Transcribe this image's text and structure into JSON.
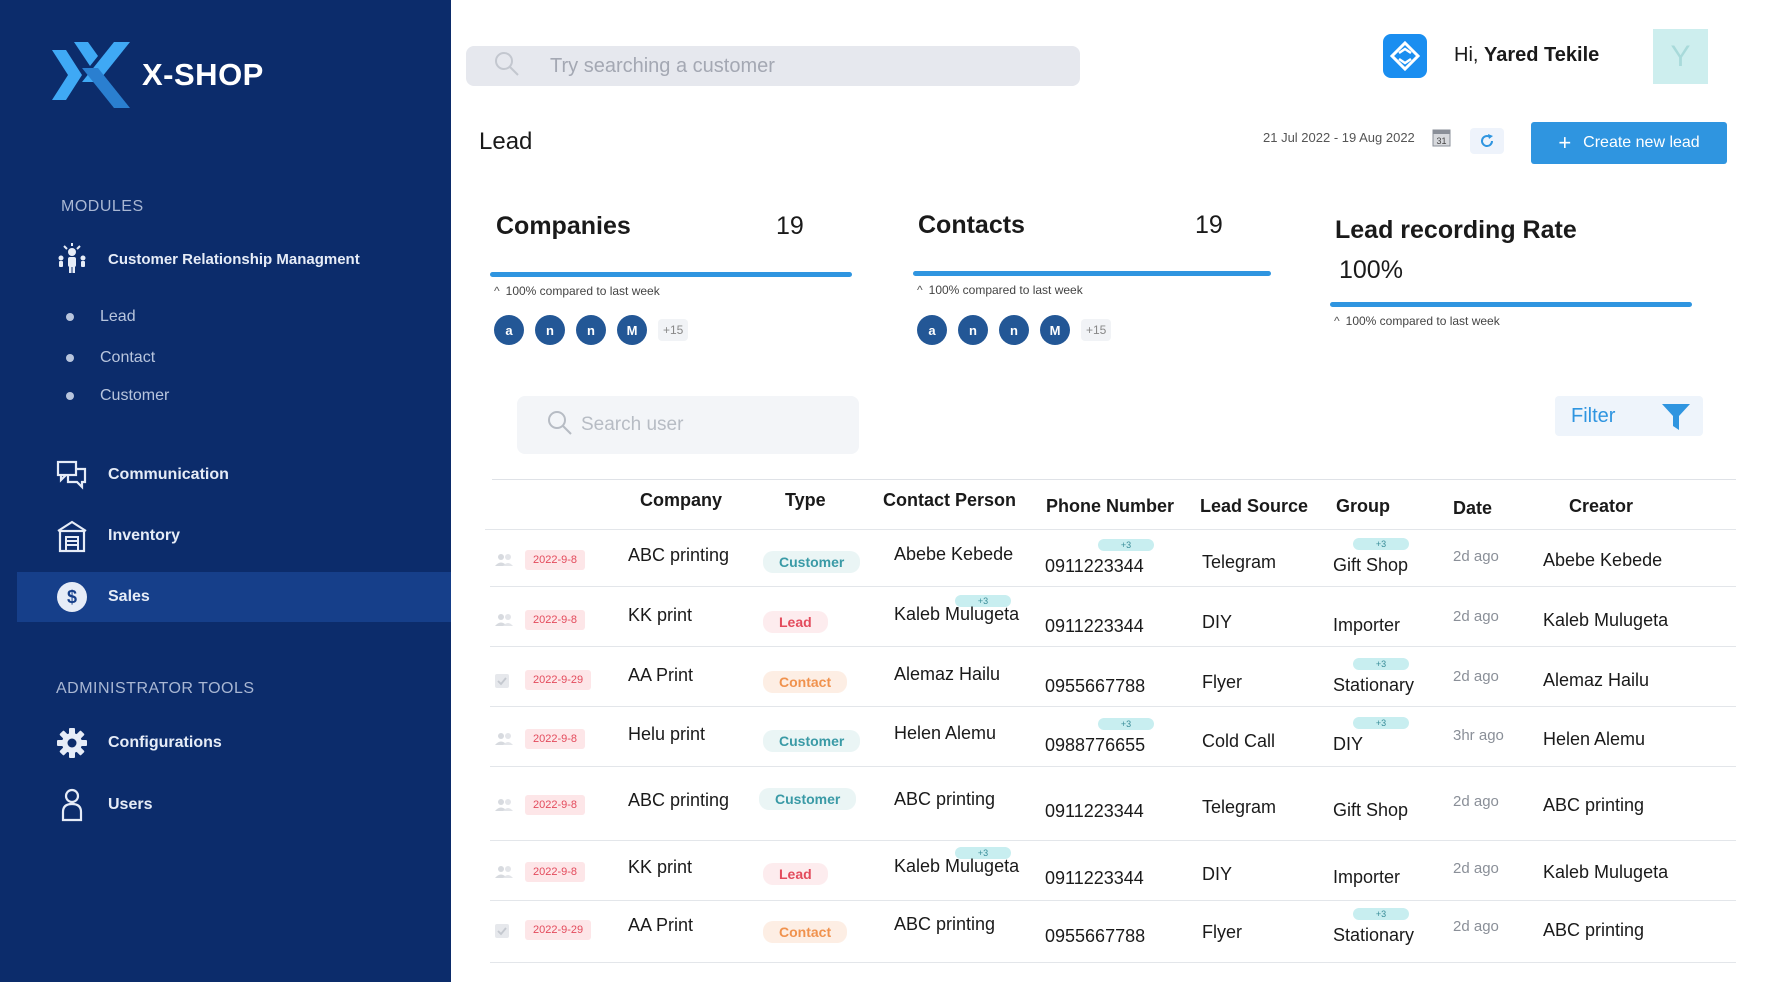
{
  "app": {
    "name": "X-SHOP",
    "colors": {
      "sidebar": "#0c2c6b",
      "accent": "#2f95e0",
      "active_nav": "#163f8a"
    }
  },
  "sidebar": {
    "modules_label": "MODULES",
    "crm_label": "Customer Relationship  Managment",
    "crm_items": [
      {
        "label": "Lead"
      },
      {
        "label": "Contact"
      },
      {
        "label": "Customer"
      }
    ],
    "nav": [
      {
        "label": "Communication",
        "icon": "chat-icon"
      },
      {
        "label": "Inventory",
        "icon": "warehouse-icon"
      },
      {
        "label": "Sales",
        "icon": "dollar-icon",
        "active": true
      }
    ],
    "admin_label": "ADMINISTRATOR TOOLS",
    "admin": [
      {
        "label": "Configurations",
        "icon": "gear-icon"
      },
      {
        "label": "Users",
        "icon": "user-icon"
      }
    ]
  },
  "header": {
    "search_placeholder": "Try searching a  customer",
    "greeting_prefix": "Hi, ",
    "user_name": "Yared Tekile",
    "avatar_letter": "Y"
  },
  "page": {
    "title": "Lead",
    "date_range": "21 Jul 2022 - 19 Aug 2022",
    "calendar_day": "31",
    "create_label": "Create new lead"
  },
  "stats": {
    "companies": {
      "title": "Companies",
      "count": "19",
      "compare": "100% compared to last week"
    },
    "contacts": {
      "title": "Contacts",
      "count": "19",
      "compare": "100% compared to last week"
    },
    "rate": {
      "title": "Lead recording Rate",
      "value": "100%",
      "compare": "100% compared to last week"
    },
    "avatars": [
      "a",
      "n",
      "n",
      "M"
    ],
    "more": "+15"
  },
  "toolbar": {
    "search_placeholder": "Search user",
    "filter_label": "Filter"
  },
  "table": {
    "headers": {
      "company": "Company",
      "type": "Type",
      "contact": "Contact Person",
      "phone": "Phone Number",
      "source": "Lead Source",
      "group": "Group",
      "date": "Date",
      "creator": "Creator"
    },
    "plus_label": "+3",
    "rows": [
      {
        "date_chip": "2022-9-8",
        "company": "ABC printing",
        "type": "Customer",
        "contact": "Abebe Kebede",
        "phone": "0911223344",
        "source": "Telegram",
        "group": "Gift Shop",
        "ago": "2d ago",
        "creator": "Abebe Kebede"
      },
      {
        "date_chip": "2022-9-8",
        "company": "KK print",
        "type": "Lead",
        "contact": "Kaleb Mulugeta",
        "phone": "0911223344",
        "source": "DIY",
        "group": "Importer",
        "ago": "2d ago",
        "creator": "Kaleb Mulugeta"
      },
      {
        "date_chip": "2022-9-29",
        "company": "AA Print",
        "type": "Contact",
        "contact": "Alemaz Hailu",
        "phone": "0955667788",
        "source": "Flyer",
        "group": "Stationary",
        "ago": "2d ago",
        "creator": "Alemaz Hailu"
      },
      {
        "date_chip": "2022-9-8",
        "company": "Helu print",
        "type": "Customer",
        "contact": "Helen Alemu",
        "phone": "0988776655",
        "source": "Cold Call",
        "group": "DIY",
        "ago": "3hr ago",
        "creator": "Helen Alemu"
      },
      {
        "date_chip": "2022-9-8",
        "company": "ABC printing",
        "type": "Customer",
        "contact": "ABC printing",
        "phone": "0911223344",
        "source": "Telegram",
        "group": "Gift Shop",
        "ago": "2d ago",
        "creator": "ABC printing"
      },
      {
        "date_chip": "2022-9-8",
        "company": "KK print",
        "type": "Lead",
        "contact": "Kaleb Mulugeta",
        "phone": "0911223344",
        "source": "DIY",
        "group": "Importer",
        "ago": "2d ago",
        "creator": "Kaleb Mulugeta"
      },
      {
        "date_chip": "2022-9-29",
        "company": "AA Print",
        "type": "Contact",
        "contact": "ABC printing",
        "phone": "0955667788",
        "source": "Flyer",
        "group": "Stationary",
        "ago": "2d ago",
        "creator": "ABC printing"
      }
    ]
  }
}
